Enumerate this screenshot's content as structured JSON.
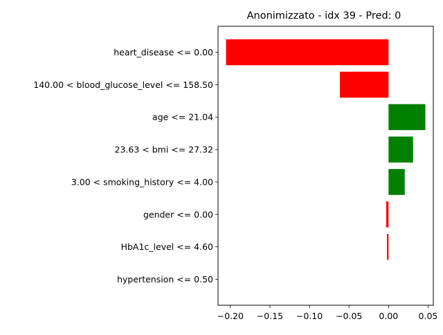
{
  "chart_data": {
    "type": "bar",
    "orientation": "horizontal",
    "title": "Anonimizzato - idx 39 - Pred: 0",
    "xlabel": "",
    "ylabel": "",
    "categories": [
      "heart_disease <= 0.00",
      "140.00 < blood_glucose_level <= 158.50",
      "age <= 21.04",
      "23.63 < bmi <= 27.32",
      "3.00 < smoking_history <= 4.00",
      "gender <= 0.00",
      "HbA1c_level <= 4.60",
      "hypertension <= 0.50"
    ],
    "values": [
      -0.2055,
      -0.0615,
      0.0465,
      0.031,
      0.0205,
      -0.003,
      -0.002,
      0.0
    ],
    "colors": {
      "positive": "#008000",
      "negative": "#ff0000"
    },
    "xlim": [
      -0.2156,
      0.0566
    ],
    "xticks": [
      -0.2,
      -0.15,
      -0.1,
      -0.05,
      0.0,
      0.05
    ],
    "xtick_labels": [
      "−0.20",
      "−0.15",
      "−0.10",
      "−0.05",
      "0.00",
      "0.05"
    ],
    "grid": false,
    "legend": "none"
  }
}
